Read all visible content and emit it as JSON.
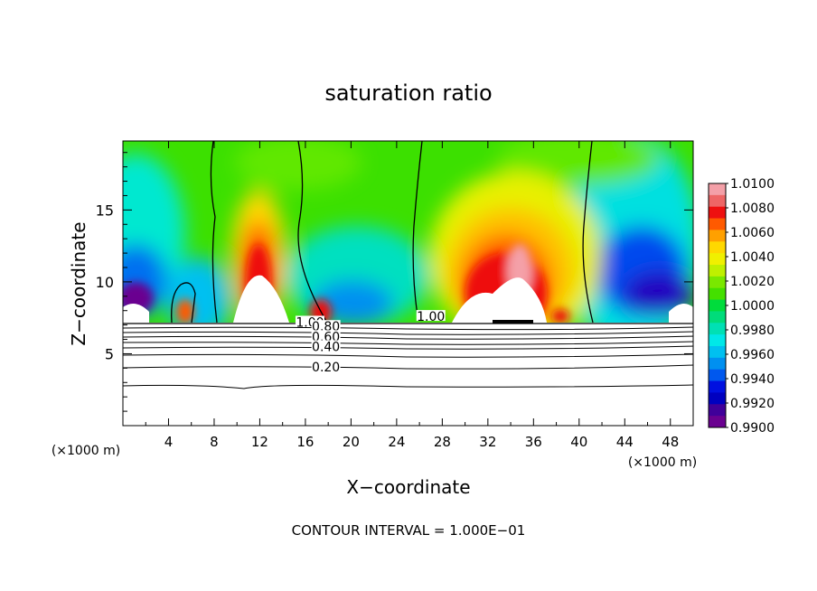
{
  "chart_data": {
    "type": "heatmap",
    "title": "saturation ratio",
    "xlabel": "X−coordinate",
    "ylabel": "Z−coordinate",
    "x_unit_left": "(×1000 m)",
    "x_unit_right": "(×1000 m)",
    "footer": "CONTOUR INTERVAL = 1.000E−01",
    "xlim": [
      0,
      50
    ],
    "ylim": [
      0,
      19.8
    ],
    "x_ticks": [
      4,
      8,
      12,
      16,
      20,
      24,
      28,
      32,
      36,
      40,
      44,
      48
    ],
    "x_tick_labels": [
      "4",
      "8",
      "12",
      "16",
      "20",
      "24",
      "28",
      "32",
      "36",
      "40",
      "44",
      "48"
    ],
    "y_ticks": [
      5,
      10,
      15
    ],
    "y_tick_labels": [
      "5",
      "10",
      "15"
    ],
    "colorbar": {
      "min": 0.99,
      "max": 1.01,
      "labels": [
        "1.0100",
        "1.0080",
        "1.0060",
        "1.0040",
        "1.0020",
        "1.0000",
        "0.9980",
        "0.9960",
        "0.9940",
        "0.9920",
        "0.9900"
      ],
      "colors": [
        "#f4a0a8",
        "#ee6666",
        "#ee1010",
        "#ff5a00",
        "#ffa000",
        "#ffd800",
        "#f0f000",
        "#bff000",
        "#7ae800",
        "#44e000",
        "#00dc3c",
        "#00dc7a",
        "#00e0b4",
        "#00e8e8",
        "#00c0f0",
        "#0090f0",
        "#0058ee",
        "#0010e0",
        "#0000c0",
        "#40009a",
        "#6a0090"
      ]
    },
    "contour_labels": [
      {
        "text": "1.00",
        "x": 16.4,
        "y": 7.2
      },
      {
        "text": "1.00",
        "x": 27.0,
        "y": 7.6
      },
      {
        "text": "0.80",
        "x": 17.8,
        "y": 6.9
      },
      {
        "text": "0.60",
        "x": 17.8,
        "y": 6.2
      },
      {
        "text": "0.40",
        "x": 17.8,
        "y": 5.5
      },
      {
        "text": "0.20",
        "x": 17.8,
        "y": 4.1
      }
    ],
    "contour_levels": [
      0.2,
      0.4,
      0.6,
      0.8,
      1.0
    ]
  }
}
